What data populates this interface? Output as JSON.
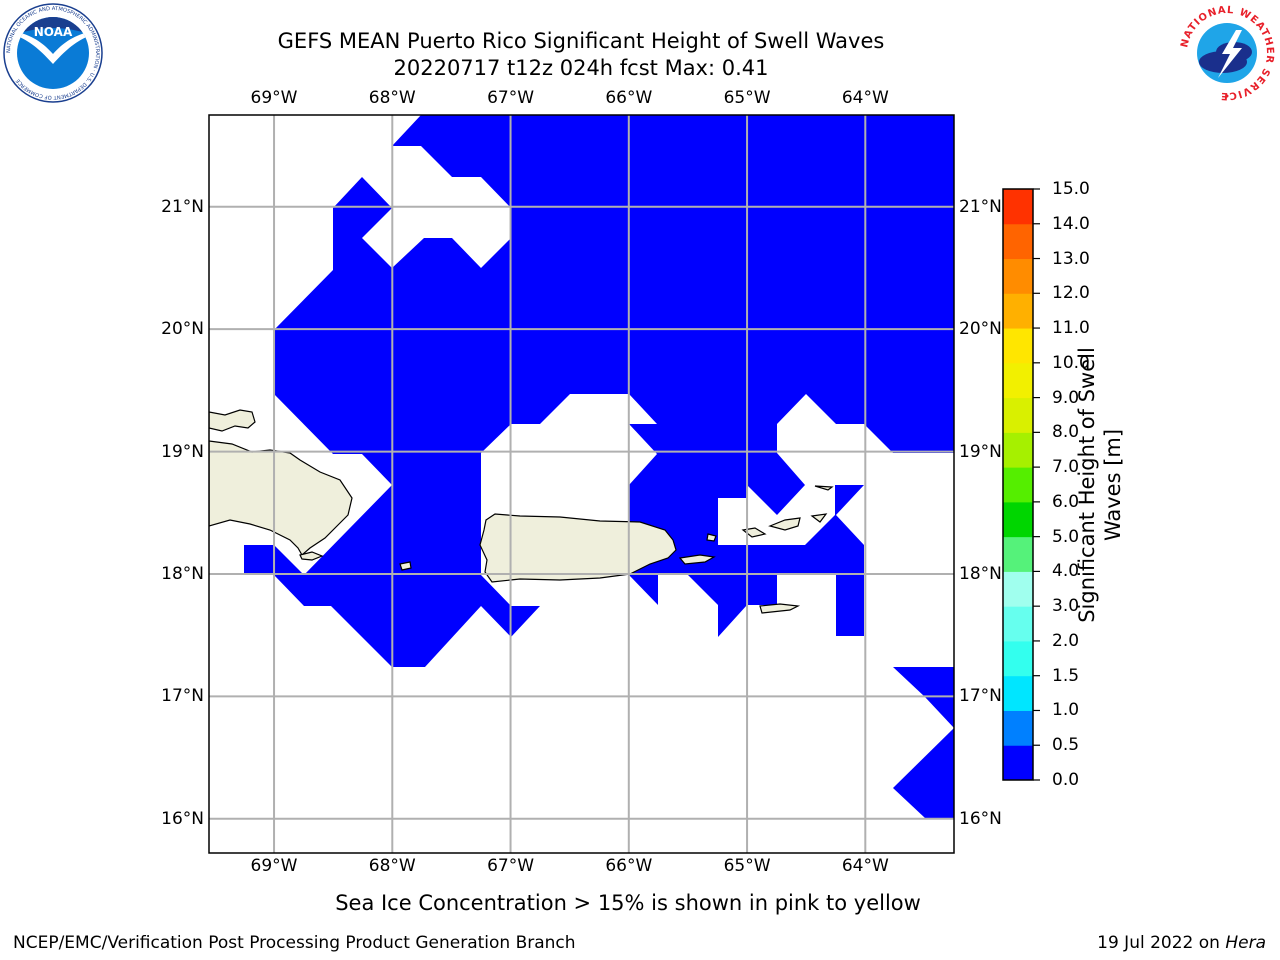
{
  "title": {
    "line1": "GEFS MEAN Puerto Rico Significant Height of Swell Waves",
    "line2": "20220717 t12z 024h fcst   Max: 0.41"
  },
  "logos": {
    "noaa": {
      "name": "noaa-logo",
      "text": "NOAA",
      "ring_text": "NATIONAL OCEANIC AND ATMOSPHERIC ADMINISTRATION · U.S. DEPARTMENT OF COMMERCE"
    },
    "nws": {
      "name": "nws-logo",
      "ring_text": "NATIONAL WEATHER SERVICE"
    }
  },
  "map": {
    "lon_range": [
      -69.55,
      -63.25
    ],
    "lat_range": [
      15.72,
      21.75
    ],
    "lon_ticks": [
      -69,
      -68,
      -67,
      -66,
      -65,
      -64
    ],
    "lat_ticks": [
      16,
      17,
      18,
      19,
      20,
      21
    ],
    "lon_labels": [
      "69°W",
      "68°W",
      "67°W",
      "66°W",
      "65°W",
      "64°W"
    ],
    "lat_labels": [
      "16°N",
      "17°N",
      "18°N",
      "19°N",
      "20°N",
      "21°N"
    ],
    "grid": true,
    "ocean_fill_color": "#0000ff",
    "land_color": "#efefdc",
    "gridline_color": "#b0b0b0"
  },
  "colorbar": {
    "label_line1": "Significant Height of Swell",
    "label_line2": "Waves [m]",
    "levels": [
      "0.0",
      "0.5",
      "1.0",
      "1.5",
      "2.0",
      "3.0",
      "4.0",
      "5.0",
      "6.0",
      "7.0",
      "8.0",
      "9.0",
      "10.0",
      "11.0",
      "12.0",
      "13.0",
      "14.0",
      "15.0"
    ],
    "colors": [
      "#0000ff",
      "#0080ff",
      "#00e6ff",
      "#33ffee",
      "#66ffee",
      "#a0ffee",
      "#55f27a",
      "#00d600",
      "#55ee00",
      "#a6f000",
      "#d9f000",
      "#f2f000",
      "#ffe600",
      "#ffb000",
      "#ff8c00",
      "#ff6400",
      "#ff3200",
      "#ff0000"
    ]
  },
  "footer": {
    "sea_ice_note": "Sea Ice Concentration > 15% is shown in pink to yellow",
    "branch": "NCEP/EMC/Verification Post Processing Product Generation Branch",
    "date_prefix": "19 Jul 2022 on ",
    "machine": "Hera"
  }
}
